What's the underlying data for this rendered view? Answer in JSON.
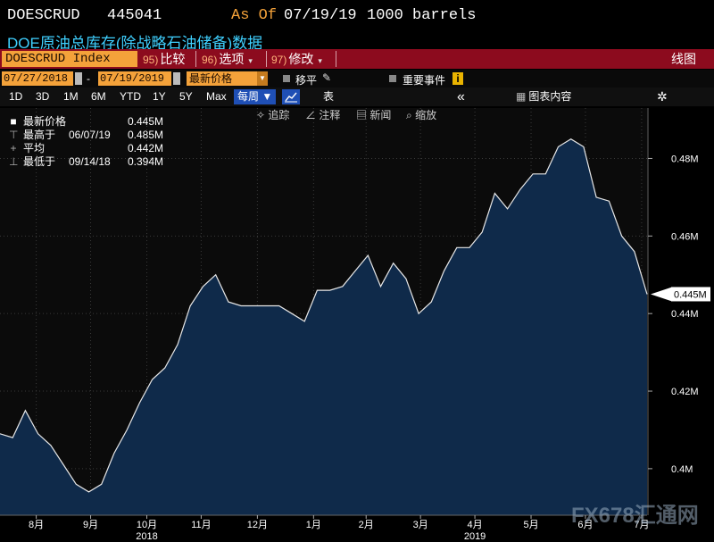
{
  "header": {
    "ticker": "DOESCRUD",
    "code": "445041",
    "as_of_label": "As Of",
    "as_of_date": "07/19/19",
    "units": "1000 barrels",
    "subtitle": "DOE原油总库存(除战略石油储备)数据"
  },
  "toolbar": {
    "index_label": "DOESCRUD Index",
    "compare": {
      "num": "95)",
      "label": "比较"
    },
    "options": {
      "num": "96)",
      "label": "选项"
    },
    "edit": {
      "num": "97)",
      "label": "修改"
    },
    "chart_kind": "线图"
  },
  "range": {
    "start": "07/27/2018",
    "dash": "-",
    "end": "07/19/2019",
    "field": "最新价格",
    "shift_label": "移平",
    "events_label": "重要事件",
    "info_glyph": "i"
  },
  "periods": [
    "1D",
    "3D",
    "1M",
    "6M",
    "YTD",
    "1Y",
    "5Y",
    "Max"
  ],
  "frequency": "每周",
  "frequency_arrow": "▼",
  "table_label": "表",
  "collapse_glyph": "«",
  "chart_content_label": "图表内容",
  "gear_glyph": "✲",
  "tools": [
    {
      "icon": "✧",
      "label": "追踪"
    },
    {
      "icon": "∠",
      "label": "注释"
    },
    {
      "icon": "▤",
      "label": "新闻"
    },
    {
      "icon": "⌕",
      "label": "缩放"
    }
  ],
  "legend": [
    {
      "marker": "■",
      "name": "最新价格",
      "date": "",
      "value": "0.445M"
    },
    {
      "marker": "⊤",
      "name": "最高于",
      "date": "06/07/19",
      "value": "0.485M"
    },
    {
      "marker": "+",
      "name": "平均",
      "date": "",
      "value": "0.442M"
    },
    {
      "marker": "⊥",
      "name": "最低于",
      "date": "09/14/18",
      "value": "0.394M"
    }
  ],
  "last_value_label": "0.445M",
  "watermark": "FX678汇通网",
  "colors": {
    "bg": "#000000",
    "plot_bg": "#0b0b0b",
    "area_fill": "#0f2a4a",
    "line": "#e8e8e8",
    "ticker_orange": "#f4a23a",
    "bar_red": "#8c0b1e",
    "subtitle_cyan": "#3fd0ff",
    "active_blue": "#1f4fb5"
  },
  "chart_data": {
    "type": "area",
    "title": "DOE原油总库存(除战略石油储备)数据",
    "unit": "M barrels",
    "x_start": "2018-07-27",
    "x_step_days": 7,
    "x_ticks": [
      {
        "label": "8月",
        "date": "2018-08-16"
      },
      {
        "label": "9月",
        "date": "2018-09-15"
      },
      {
        "label": "10月",
        "date": "2018-10-16"
      },
      {
        "label": "11月",
        "date": "2018-11-15"
      },
      {
        "label": "12月",
        "date": "2018-12-16"
      },
      {
        "label": "1月",
        "date": "2019-01-16"
      },
      {
        "label": "2月",
        "date": "2019-02-14"
      },
      {
        "label": "3月",
        "date": "2019-03-16"
      },
      {
        "label": "4月",
        "date": "2019-04-15"
      },
      {
        "label": "5月",
        "date": "2019-05-16"
      },
      {
        "label": "6月",
        "date": "2019-06-15"
      },
      {
        "label": "7月",
        "date": "2019-07-16"
      }
    ],
    "year_labels": [
      {
        "label": "2018",
        "date": "2018-10-16"
      },
      {
        "label": "2019",
        "date": "2019-04-15"
      }
    ],
    "y_ticks": [
      0.4,
      0.42,
      0.44,
      0.46,
      0.48
    ],
    "y_tick_labels": [
      "0.4M",
      "0.42M",
      "0.44M",
      "0.46M",
      "0.48M"
    ],
    "ylim": [
      0.388,
      0.493
    ],
    "values": [
      0.409,
      0.408,
      0.415,
      0.409,
      0.406,
      0.401,
      0.396,
      0.394,
      0.396,
      0.404,
      0.41,
      0.417,
      0.423,
      0.426,
      0.432,
      0.442,
      0.447,
      0.45,
      0.443,
      0.442,
      0.442,
      0.442,
      0.442,
      0.44,
      0.438,
      0.446,
      0.446,
      0.447,
      0.451,
      0.455,
      0.447,
      0.453,
      0.449,
      0.44,
      0.443,
      0.451,
      0.457,
      0.457,
      0.461,
      0.471,
      0.467,
      0.472,
      0.476,
      0.476,
      0.483,
      0.485,
      0.483,
      0.47,
      0.469,
      0.46,
      0.456,
      0.445
    ],
    "last_value": 0.445,
    "grid": true
  }
}
